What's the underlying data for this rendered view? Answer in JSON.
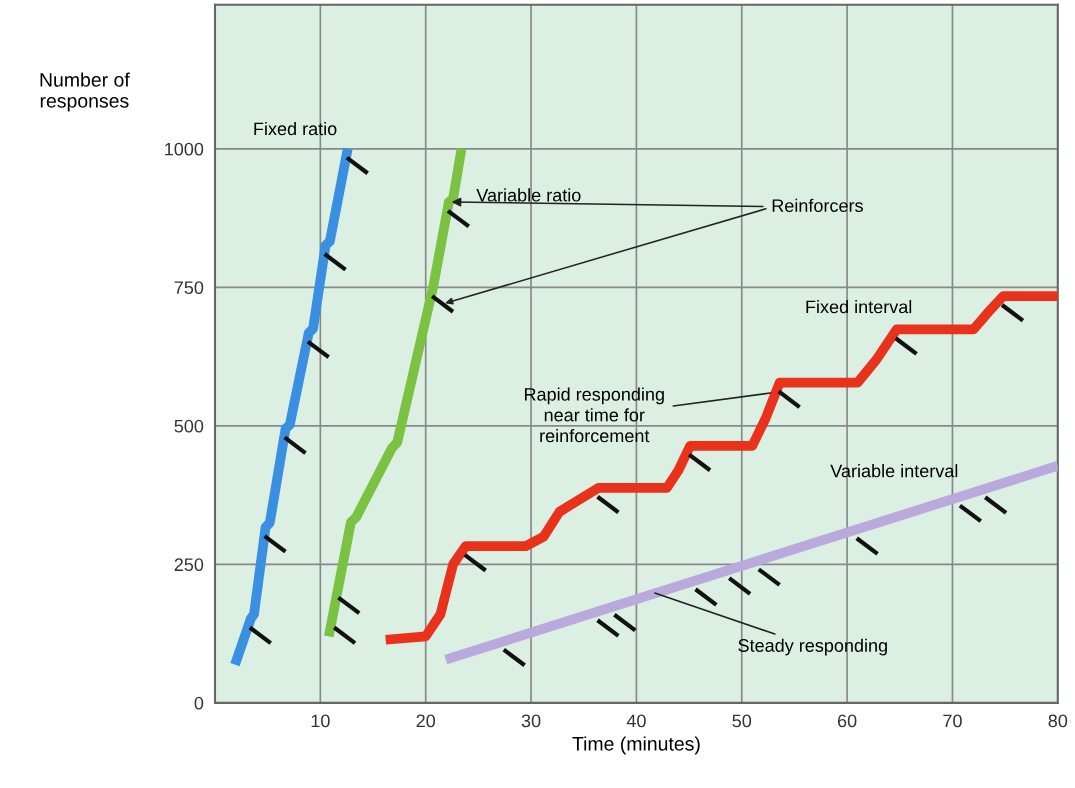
{
  "chart_data": {
    "type": "line",
    "xlabel": "Time (minutes)",
    "ylabel": "Number of\nresponses",
    "xlim": [
      0,
      80
    ],
    "xticks": [
      10,
      20,
      30,
      40,
      50,
      60,
      70,
      80
    ],
    "ylim": [
      0,
      1260
    ],
    "yticks": [
      0,
      250,
      500,
      750,
      1000
    ],
    "grid": true,
    "legend": false,
    "marker": "none",
    "line_style": "solid",
    "series": [
      {
        "name": "Fixed ratio",
        "color": "#3b8fe0",
        "x": [
          1.9,
          3.4,
          3.7,
          4.8,
          5.2,
          6.7,
          7.1,
          8.9,
          9.3,
          10.5,
          10.9,
          12.6
        ],
        "values": [
          69,
          152,
          160,
          317,
          325,
          495,
          502,
          668,
          675,
          826,
          833,
          1000
        ]
      },
      {
        "name": "Variable ratio",
        "color": "#7cc242",
        "x": [
          10.8,
          12.9,
          13.4,
          16.8,
          17.3,
          20.7,
          22.2,
          22.6,
          23.4
        ],
        "values": [
          120,
          326,
          335,
          460,
          470,
          750,
          904,
          910,
          1000
        ]
      },
      {
        "name": "Fixed interval",
        "color": "#e8321c",
        "x": [
          16.2,
          20.0,
          21.4,
          22.6,
          23.8,
          29.5,
          31.2,
          32.7,
          36.4,
          42.9,
          44.0,
          45.1,
          51.0,
          52.3,
          53.6,
          61.0,
          62.8,
          64.7,
          72.0,
          73.4,
          74.8,
          80.0
        ],
        "values": [
          114,
          120,
          160,
          250,
          283,
          283,
          300,
          345,
          388,
          388,
          420,
          464,
          464,
          515,
          578,
          578,
          620,
          674,
          674,
          705,
          734,
          734
        ]
      },
      {
        "name": "Variable interval",
        "color": "#b9a9dc",
        "x": [
          21.9,
          80.0
        ],
        "values": [
          78,
          428
        ]
      },
      {
        "type": "scatter",
        "marker": "cross",
        "color": "#111111",
        "x": [
          4.3,
          5.7,
          7.6,
          9.8,
          11.4,
          13.5,
          12.3,
          12.7,
          21.6,
          23.1,
          24.7,
          37.3,
          46.0,
          54.5,
          65.6,
          75.7,
          28.4,
          37.3,
          38.9,
          46.6,
          49.8,
          52.6,
          61.9,
          71.7,
          74.1
        ],
        "values": [
          122,
          287,
          465,
          638,
          796,
          970,
          122,
          176,
          720,
          874,
          253,
          358,
          434,
          548,
          644,
          704,
          82,
          135,
          145,
          191,
          211,
          227,
          283,
          342,
          357
        ]
      }
    ],
    "annotations": [
      {
        "text": "Reinforcers",
        "x": 22.2,
        "y": 904
      },
      {
        "text": "Rapid responding\nnear time for\nreinforcement",
        "x": 53.0,
        "y": 560
      },
      {
        "text": "Steady responding",
        "x": 41.5,
        "y": 200
      }
    ]
  }
}
